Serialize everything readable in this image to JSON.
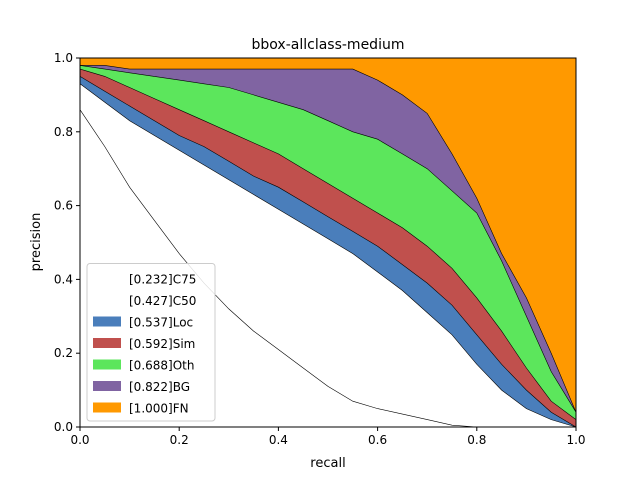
{
  "chart_data": {
    "type": "area",
    "title": "bbox-allclass-medium",
    "xlabel": "recall",
    "ylabel": "precision",
    "xlim": [
      0,
      1
    ],
    "ylim": [
      0,
      1
    ],
    "xticks": [
      "0.0",
      "0.2",
      "0.4",
      "0.6",
      "0.8",
      "1.0"
    ],
    "yticks": [
      "0.0",
      "0.2",
      "0.4",
      "0.6",
      "0.8",
      "1.0"
    ],
    "legend_position": "lower-left",
    "x": [
      0.0,
      0.05,
      0.1,
      0.15,
      0.2,
      0.25,
      0.3,
      0.35,
      0.4,
      0.45,
      0.5,
      0.55,
      0.6,
      0.65,
      0.7,
      0.75,
      0.8,
      0.85,
      0.9,
      0.95,
      1.0
    ],
    "series": [
      {
        "name": "[0.232]C75",
        "color": "#ffffff",
        "line": "#000000",
        "values": [
          0.86,
          0.76,
          0.65,
          0.56,
          0.47,
          0.39,
          0.32,
          0.26,
          0.21,
          0.16,
          0.11,
          0.07,
          0.05,
          0.035,
          0.02,
          0.005,
          0.0,
          0.0,
          0.0,
          0.0,
          0.0
        ]
      },
      {
        "name": "[0.427]C50",
        "color": "#ffffff",
        "line": "#000000",
        "values": [
          0.93,
          0.88,
          0.83,
          0.79,
          0.75,
          0.71,
          0.67,
          0.63,
          0.59,
          0.55,
          0.51,
          0.47,
          0.42,
          0.37,
          0.31,
          0.25,
          0.17,
          0.1,
          0.05,
          0.02,
          0.0
        ]
      },
      {
        "name": "[0.537]Loc",
        "color": "#4a7ebb",
        "line": "#000000",
        "values": [
          0.95,
          0.91,
          0.87,
          0.83,
          0.79,
          0.76,
          0.72,
          0.68,
          0.65,
          0.61,
          0.57,
          0.53,
          0.49,
          0.44,
          0.39,
          0.33,
          0.25,
          0.17,
          0.1,
          0.04,
          0.0
        ]
      },
      {
        "name": "[0.592]Sim",
        "color": "#c0504d",
        "line": "#000000",
        "values": [
          0.97,
          0.95,
          0.92,
          0.89,
          0.86,
          0.83,
          0.8,
          0.77,
          0.74,
          0.7,
          0.66,
          0.62,
          0.58,
          0.54,
          0.49,
          0.43,
          0.35,
          0.26,
          0.16,
          0.07,
          0.02
        ]
      },
      {
        "name": "[0.688]Oth",
        "color": "#5ce65c",
        "line": "#000000",
        "values": [
          0.98,
          0.97,
          0.96,
          0.95,
          0.94,
          0.93,
          0.92,
          0.9,
          0.88,
          0.86,
          0.83,
          0.8,
          0.78,
          0.74,
          0.7,
          0.64,
          0.58,
          0.45,
          0.3,
          0.15,
          0.04
        ]
      },
      {
        "name": "[0.822]BG",
        "color": "#8064a2",
        "line": "#000000",
        "values": [
          0.98,
          0.98,
          0.97,
          0.97,
          0.97,
          0.97,
          0.97,
          0.97,
          0.97,
          0.97,
          0.97,
          0.97,
          0.94,
          0.9,
          0.85,
          0.74,
          0.62,
          0.47,
          0.35,
          0.2,
          0.04
        ]
      },
      {
        "name": "[1.000]FN",
        "color": "#ff9900",
        "line": "#000000",
        "values": [
          1.0,
          1.0,
          1.0,
          1.0,
          1.0,
          1.0,
          1.0,
          1.0,
          1.0,
          1.0,
          1.0,
          1.0,
          1.0,
          1.0,
          1.0,
          1.0,
          1.0,
          1.0,
          1.0,
          1.0,
          1.0
        ]
      }
    ]
  }
}
